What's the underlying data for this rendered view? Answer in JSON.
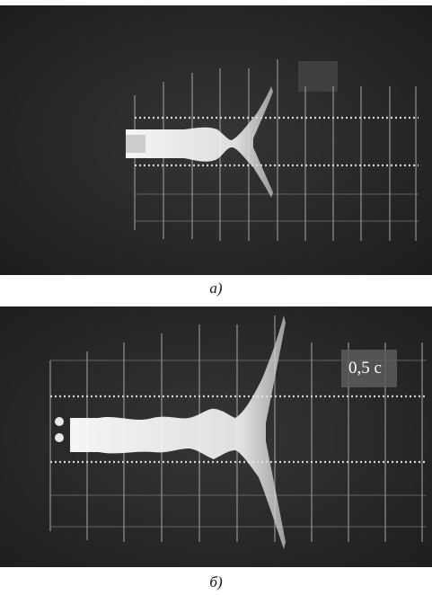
{
  "figures": [
    {
      "caption": "а)"
    },
    {
      "caption": "б)",
      "overlay_label": "0,5 с"
    }
  ]
}
